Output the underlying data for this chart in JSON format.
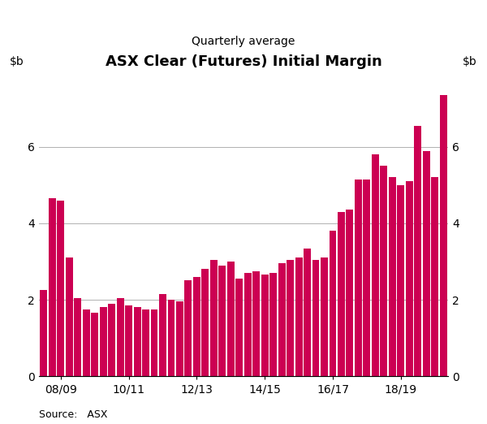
{
  "title": "ASX Clear (Futures) Initial Margin",
  "subtitle": "Quarterly average",
  "source": "Source:   ASX",
  "bar_color": "#CC0052",
  "background_color": "#ffffff",
  "ylim": [
    0,
    8
  ],
  "yticks": [
    0,
    2,
    4,
    6
  ],
  "values": [
    2.25,
    4.65,
    4.6,
    3.1,
    2.05,
    1.75,
    1.65,
    1.8,
    1.9,
    2.05,
    1.85,
    1.8,
    1.75,
    1.75,
    2.15,
    2.0,
    1.95,
    2.5,
    2.6,
    2.8,
    3.05,
    2.9,
    3.0,
    2.55,
    2.7,
    2.75,
    2.65,
    2.7,
    2.95,
    3.05,
    3.1,
    3.35,
    3.05,
    3.1,
    3.8,
    4.3,
    4.35,
    5.15,
    5.15,
    5.8,
    5.5,
    5.2,
    5.0,
    5.1,
    6.55,
    5.9,
    5.2,
    7.35
  ],
  "xtick_labels": [
    "08/09",
    "10/11",
    "12/13",
    "14/15",
    "16/17",
    "18/19"
  ],
  "xtick_spacing": 8,
  "n_bars": 48
}
